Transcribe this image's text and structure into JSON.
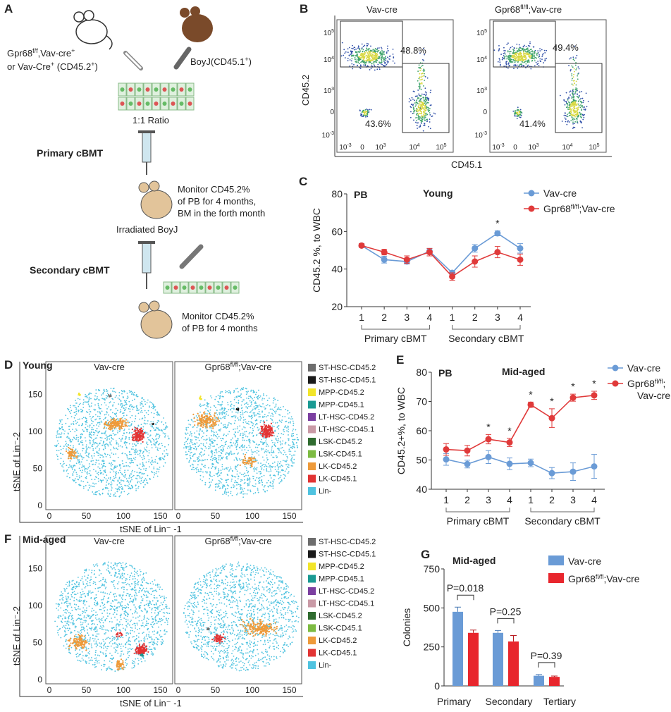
{
  "panel_a": {
    "label": "A",
    "donor1": [
      "Gpr68",
      "f/f",
      ",Vav-cre",
      "+"
    ],
    "donor2": [
      "or  Vav-Cre",
      "+",
      " (CD45.2",
      "+",
      ")"
    ],
    "donor3": [
      "BoyJ(CD45.1",
      "+",
      ")"
    ],
    "ratio": "1:1 Ratio",
    "primary": "Primary cBMT",
    "monitor1": [
      "Monitor CD45.2%",
      "of PB for 4 months,",
      "BM in the forth month"
    ],
    "recipient": "Irradiated BoyJ",
    "secondary": "Secondary cBMT",
    "monitor2": [
      "Monitor CD45.2%",
      "of PB for 4 months"
    ]
  },
  "panel_b": {
    "label": "B",
    "plots": [
      {
        "title": [
          "Vav-cre",
          "",
          ""
        ],
        "upper_pct": "48.8%",
        "lower_pct": "43.6%"
      },
      {
        "title": [
          "Gpr68",
          "fl/fl",
          ";Vav-cre"
        ],
        "upper_pct": "49.4%",
        "lower_pct": "41.4%"
      }
    ],
    "ylabel": "CD45.2",
    "xlabel": "CD45.1",
    "ticks": [
      "10",
      "-3",
      "0",
      "10",
      "3",
      "10",
      "4",
      "10",
      "5"
    ]
  },
  "chart_data": [
    {
      "id": "C",
      "type": "line",
      "label": "C",
      "corner": "PB",
      "title": "Young",
      "ylabel": "CD45.2 %, to WBC",
      "ylim": [
        20,
        80
      ],
      "yticks": [
        20,
        40,
        60,
        80
      ],
      "categories": [
        "1",
        "2",
        "3",
        "4",
        "1",
        "2",
        "3",
        "4"
      ],
      "groups": [
        "Primary cBMT",
        "Secondary cBMT"
      ],
      "series": [
        {
          "name": "Vav-cre",
          "color": "#6a9bd6",
          "values": [
            52.5,
            45,
            44,
            49.5,
            38,
            51,
            59,
            51
          ],
          "errors": [
            1,
            1.8,
            1.3,
            1.5,
            1,
            2,
            1.3,
            2.5
          ]
        },
        {
          "name": "Gpr68fl/fl;Vav-cre",
          "name_parts": [
            "Gpr68",
            "fl/fl",
            ";Vav-cre"
          ],
          "color": "#e03a3a",
          "values": [
            52.5,
            49,
            45,
            49,
            36,
            44,
            49,
            45
          ],
          "errors": [
            1,
            1.5,
            2,
            2,
            2,
            3,
            3,
            3
          ]
        }
      ],
      "significance": [
        {
          "index": 6,
          "mark": "*"
        }
      ],
      "legend": "top-right"
    },
    {
      "id": "E",
      "type": "line",
      "label": "E",
      "corner": "PB",
      "title": "Mid-aged",
      "ylabel": "CD45.2+%, to WBC",
      "ylim": [
        40,
        80
      ],
      "yticks": [
        40,
        50,
        60,
        70,
        80
      ],
      "categories": [
        "1",
        "2",
        "3",
        "4",
        "1",
        "2",
        "3",
        "4"
      ],
      "groups": [
        "Primary cBMT",
        "Secondary cBMT"
      ],
      "series": [
        {
          "name": "Vav-cre",
          "color": "#6a9bd6",
          "values": [
            50.2,
            48.6,
            51,
            48.7,
            49,
            45.5,
            46,
            47.8
          ],
          "errors": [
            2,
            1.3,
            2.2,
            2,
            1.3,
            1.9,
            3,
            4.1
          ]
        },
        {
          "name": "Gpr68fl/fl;Vav-cre",
          "name_parts": [
            "Gpr68",
            "fl/fl",
            ";",
            "Vav-cre"
          ],
          "color": "#e03a3a",
          "values": [
            53.6,
            53.2,
            57.1,
            56,
            68.9,
            64.3,
            71.3,
            72.1
          ],
          "errors": [
            2,
            1.8,
            1.6,
            1.4,
            0.9,
            3.2,
            1.2,
            1.4
          ]
        }
      ],
      "significance": [
        {
          "index": 2,
          "mark": "*"
        },
        {
          "index": 3,
          "mark": "*"
        },
        {
          "index": 4,
          "mark": "*"
        },
        {
          "index": 5,
          "mark": "*"
        },
        {
          "index": 6,
          "mark": "*"
        },
        {
          "index": 7,
          "mark": "*"
        }
      ],
      "legend": "top-right"
    },
    {
      "id": "G",
      "type": "bar",
      "label": "G",
      "title": "Mid-aged",
      "ylabel": "Colonies",
      "ylim": [
        0,
        750
      ],
      "yticks": [
        0,
        250,
        500,
        750
      ],
      "categories": [
        "Primary",
        "Secondary",
        "Tertiary"
      ],
      "series": [
        {
          "name": "Vav-cre",
          "color": "#6a9bd6",
          "values": [
            475,
            340,
            65
          ],
          "errors": [
            30,
            15,
            8
          ]
        },
        {
          "name": "Gpr68fl/fl;Vav-cre",
          "name_parts": [
            "Gpr68",
            "fl/fl",
            ";Vav-cre"
          ],
          "color": "#e8262d",
          "values": [
            340,
            285,
            58
          ],
          "errors": [
            18,
            38,
            5
          ]
        }
      ],
      "pvalues": [
        "P=0.018",
        "P=0.25",
        "P=0.39"
      ],
      "legend": "top-right"
    }
  ],
  "tsne": {
    "panels": [
      {
        "label": "D",
        "age": "Young",
        "plots": [
          [
            "Vav-cre",
            "",
            ""
          ],
          [
            "Gpr68",
            "fl/fl",
            ";Vav-cre"
          ]
        ]
      },
      {
        "label": "F",
        "age": "Mid-aged",
        "plots": [
          [
            "Vav-cre",
            "",
            ""
          ],
          [
            "Gpr68",
            "fl/fl",
            ";Vav-cre"
          ]
        ]
      }
    ],
    "ylabel": "tSNE of Lin⁻-2",
    "xlabel": "tSNE of Lin⁻ -1",
    "ticks": [
      "0",
      "50",
      "100",
      "150"
    ],
    "legend": [
      {
        "name": "ST-HSC-CD45.2",
        "color": "#6d6d6d"
      },
      {
        "name": "ST-HSC-CD45.1",
        "color": "#1a1a1a"
      },
      {
        "name": "MPP-CD45.2",
        "color": "#f2e52a"
      },
      {
        "name": "MPP-CD45.1",
        "color": "#1a9a93"
      },
      {
        "name": "LT-HSC-CD45.2",
        "color": "#7b3fa0"
      },
      {
        "name": "LT-HSC-CD45.1",
        "color": "#c99aa6"
      },
      {
        "name": "LSK-CD45.2",
        "color": "#2f6b2f"
      },
      {
        "name": "LSK-CD45.1",
        "color": "#7dbb42"
      },
      {
        "name": "LK-CD45.2",
        "color": "#ee9a3a"
      },
      {
        "name": "LK-CD45.1",
        "color": "#e23434"
      },
      {
        "name": "Lin-",
        "color": "#4fc3e0"
      }
    ]
  }
}
